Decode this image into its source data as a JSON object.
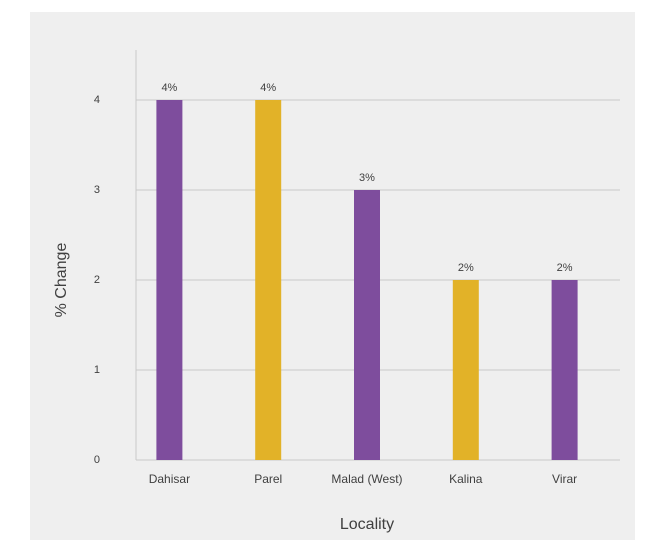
{
  "chart_data": {
    "type": "bar",
    "x_label": "Locality",
    "y_label": "% Change",
    "categories": [
      "Dahisar",
      "Parel",
      "Malad (West)",
      "Kalina",
      "Virar"
    ],
    "values": [
      4,
      4,
      3,
      2,
      2
    ],
    "value_labels": [
      "4%",
      "4%",
      "3%",
      "2%",
      "2%"
    ],
    "colors": [
      "#7e4d9d",
      "#e2b228",
      "#7e4d9d",
      "#e2b228",
      "#7e4d9d"
    ],
    "ylim": [
      0,
      4.5
    ],
    "yticks": [
      0,
      1,
      2,
      3,
      4
    ],
    "grid": true
  }
}
